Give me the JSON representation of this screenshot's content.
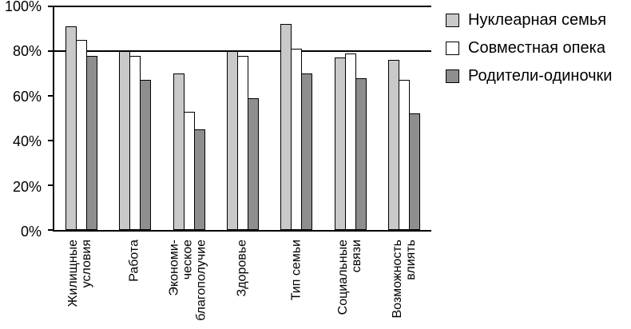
{
  "chart_data": {
    "type": "bar",
    "title": "",
    "xlabel": "",
    "ylabel": "",
    "ylim": [
      0,
      100
    ],
    "grid": "lines at 80% and 100% only",
    "gridlines": [
      80,
      100
    ],
    "legend_position": "right",
    "yticks": [
      {
        "value": 0,
        "label": "0%"
      },
      {
        "value": 20,
        "label": "20%"
      },
      {
        "value": 40,
        "label": "40%"
      },
      {
        "value": 60,
        "label": "60%"
      },
      {
        "value": 80,
        "label": "80%"
      },
      {
        "value": 100,
        "label": "100%"
      }
    ],
    "categories": [
      "Жилищные\nусловия",
      "Работа",
      "Экономи-\nческое\nблагополучие",
      "Здоровье",
      "Тип семьи",
      "Социальные\nсвязи",
      "Возможность\nвлиять"
    ],
    "series": [
      {
        "name": "Нуклеарная семья",
        "color": "#c9c9c9",
        "values": [
          91,
          80,
          70,
          80,
          92,
          77,
          76
        ]
      },
      {
        "name": "Совместная опека",
        "color": "#ffffff",
        "values": [
          85,
          78,
          53,
          78,
          81,
          79,
          67
        ]
      },
      {
        "name": "Родители-одиночки",
        "color": "#8e8e8e",
        "values": [
          78,
          67,
          45,
          59,
          70,
          68,
          52
        ]
      }
    ],
    "axis_color": "#000000",
    "bar_border_color": "#000000"
  }
}
